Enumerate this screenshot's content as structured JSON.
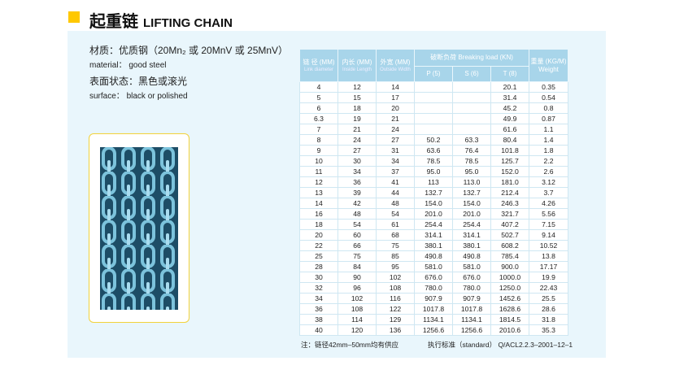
{
  "header": {
    "title_zh": "起重链",
    "title_en": "LIFTING CHAIN",
    "accent": "#ffc800"
  },
  "info": {
    "material_zh": "材质：优质钢（20Mn₂ 或 20MnV 或 25MnV）",
    "material_en": "material： good steel",
    "surface_zh": "表面状态：黑色或滚光",
    "surface_en": "surface： black or polished"
  },
  "table": {
    "headers": {
      "dia_zh": "链 径 (MM)",
      "dia_en": "Link diameter",
      "len_zh": "内长 (MM)",
      "len_en": "Inside Length",
      "wid_zh": "外宽 (MM)",
      "wid_en": "Outside Width",
      "load": "破断负荷 Breaking load (KN)",
      "p": "P (5)",
      "s": "S (6)",
      "t": "T (8)",
      "wt_zh": "重量 (KG/M)",
      "wt_en": "Weight"
    },
    "rows": [
      [
        "4",
        "12",
        "14",
        "",
        "",
        "20.1",
        "0.35"
      ],
      [
        "5",
        "15",
        "17",
        "",
        "",
        "31.4",
        "0.54"
      ],
      [
        "6",
        "18",
        "20",
        "",
        "",
        "45.2",
        "0.8"
      ],
      [
        "6.3",
        "19",
        "21",
        "",
        "",
        "49.9",
        "0.87"
      ],
      [
        "7",
        "21",
        "24",
        "",
        "",
        "61.6",
        "1.1"
      ],
      [
        "8",
        "24",
        "27",
        "50.2",
        "63.3",
        "80.4",
        "1.4"
      ],
      [
        "9",
        "27",
        "31",
        "63.6",
        "76.4",
        "101.8",
        "1.8"
      ],
      [
        "10",
        "30",
        "34",
        "78.5",
        "78.5",
        "125.7",
        "2.2"
      ],
      [
        "11",
        "34",
        "37",
        "95.0",
        "95.0",
        "152.0",
        "2.6"
      ],
      [
        "12",
        "36",
        "41",
        "113",
        "113.0",
        "181.0",
        "3.12"
      ],
      [
        "13",
        "39",
        "44",
        "132.7",
        "132.7",
        "212.4",
        "3.7"
      ],
      [
        "14",
        "42",
        "48",
        "154.0",
        "154.0",
        "246.3",
        "4.26"
      ],
      [
        "16",
        "48",
        "54",
        "201.0",
        "201.0",
        "321.7",
        "5.56"
      ],
      [
        "18",
        "54",
        "61",
        "254.4",
        "254.4",
        "407.2",
        "7.15"
      ],
      [
        "20",
        "60",
        "68",
        "314.1",
        "314.1",
        "502.7",
        "9.14"
      ],
      [
        "22",
        "66",
        "75",
        "380.1",
        "380.1",
        "608.2",
        "10.52"
      ],
      [
        "25",
        "75",
        "85",
        "490.8",
        "490.8",
        "785.4",
        "13.8"
      ],
      [
        "28",
        "84",
        "95",
        "581.0",
        "581.0",
        "900.0",
        "17.17"
      ],
      [
        "30",
        "90",
        "102",
        "676.0",
        "676.0",
        "1000.0",
        "19.9"
      ],
      [
        "32",
        "96",
        "108",
        "780.0",
        "780.0",
        "1250.0",
        "22.43"
      ],
      [
        "34",
        "102",
        "116",
        "907.9",
        "907.9",
        "1452.6",
        "25.5"
      ],
      [
        "36",
        "108",
        "122",
        "1017.8",
        "1017.8",
        "1628.6",
        "28.6"
      ],
      [
        "38",
        "114",
        "129",
        "1134.1",
        "1134.1",
        "1814.5",
        "31.8"
      ],
      [
        "40",
        "120",
        "136",
        "1256.6",
        "1256.6",
        "2010.6",
        "35.3"
      ]
    ]
  },
  "notes": {
    "left": "注：链径42mm–50mm均有供应",
    "right": "执行标准（standard） Q/ACL2.2.3–2001–12–1"
  }
}
